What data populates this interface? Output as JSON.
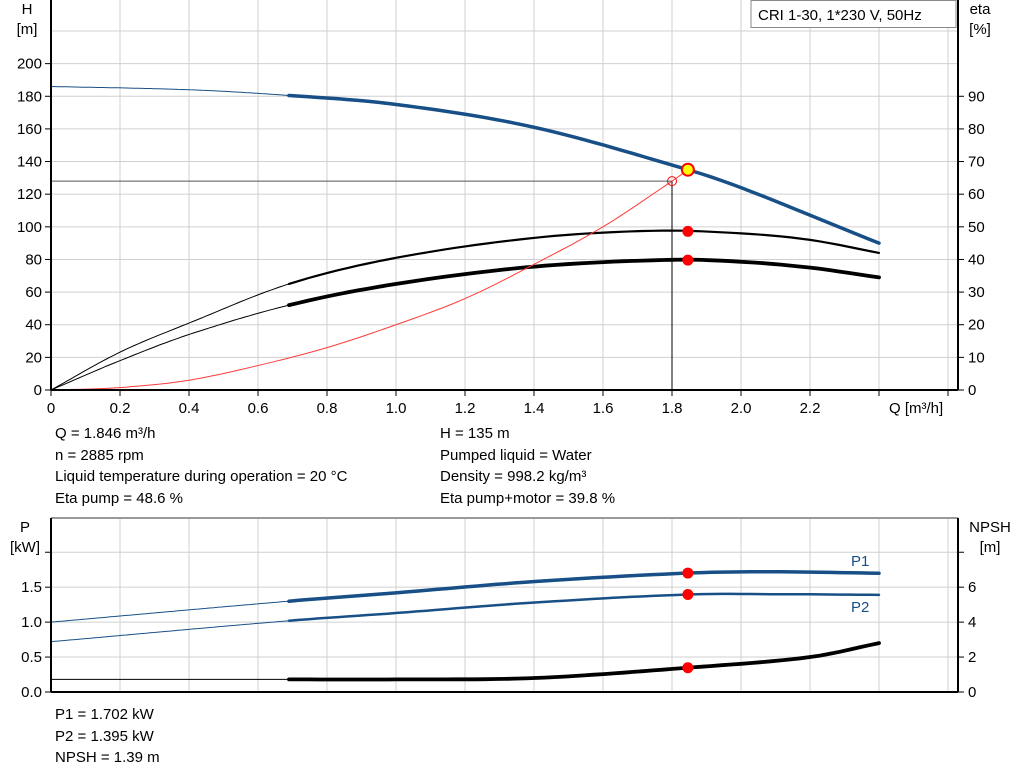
{
  "chart_data": [
    {
      "type": "line",
      "title": "CRI 1-30, 1*230 V, 50Hz",
      "xlabel": "Q [m³/h]",
      "ylabel_left": {
        "name": "H",
        "unit": "[m]"
      },
      "ylabel_right": {
        "name": "eta",
        "unit": "[%]"
      },
      "xlim": [
        0,
        2.6
      ],
      "ylim_left": [
        0,
        239
      ],
      "ylim_right": [
        0,
        119.5
      ],
      "grid": true,
      "x_ticks": [
        "0",
        "0.2",
        "0.4",
        "0.6",
        "0.8",
        "1.0",
        "1.2",
        "1.4",
        "1.6",
        "1.8",
        "2.0",
        "2.2"
      ],
      "y_ticks_left": [
        "0",
        "20",
        "40",
        "60",
        "80",
        "100",
        "120",
        "140",
        "160",
        "180",
        "200"
      ],
      "y_ticks_right": [
        "0",
        "10",
        "20",
        "30",
        "40",
        "50",
        "60",
        "70",
        "80",
        "90"
      ],
      "series": [
        {
          "axis": "left",
          "color": "#174f86",
          "curve": "H",
          "points": [
            [
              0,
              186
            ],
            [
              0.4,
              184
            ],
            [
              0.69,
              180.5
            ],
            [
              1.0,
              175
            ],
            [
              1.4,
              161
            ],
            [
              1.846,
              135
            ],
            [
              2.0,
              124
            ],
            [
              2.4,
              90
            ]
          ]
        },
        {
          "axis": "right",
          "color": "#000000",
          "curve": "eta pump",
          "points": [
            [
              0,
              0
            ],
            [
              0.2,
              11.6
            ],
            [
              0.4,
              20.5
            ],
            [
              0.69,
              32.5
            ],
            [
              1.0,
              40.5
            ],
            [
              1.4,
              46.6
            ],
            [
              1.75,
              48.8
            ],
            [
              2.0,
              48
            ],
            [
              2.2,
              46
            ],
            [
              2.4,
              42
            ]
          ]
        },
        {
          "axis": "right",
          "color": "#000000",
          "curve": "eta pump+motor",
          "points": [
            [
              0,
              0
            ],
            [
              0.2,
              9
            ],
            [
              0.4,
              17
            ],
            [
              0.69,
              26
            ],
            [
              1.0,
              32.5
            ],
            [
              1.4,
              37.8
            ],
            [
              1.8,
              39.9
            ],
            [
              2.0,
              39.3
            ],
            [
              2.2,
              37.5
            ],
            [
              2.4,
              34.5
            ]
          ]
        },
        {
          "axis": "left",
          "color": "#ff3b3b",
          "curve": "system",
          "points": [
            [
              0,
              0
            ],
            [
              0.2,
              1.5
            ],
            [
              0.4,
              6
            ],
            [
              0.6,
              15
            ],
            [
              0.8,
              26
            ],
            [
              1.0,
              40
            ],
            [
              1.2,
              56
            ],
            [
              1.4,
              77
            ],
            [
              1.6,
              100
            ],
            [
              1.8,
              128
            ],
            [
              1.846,
              135
            ]
          ]
        }
      ],
      "duty_point": {
        "q": 1.846,
        "h": 135,
        "eta_pump": 48.6,
        "eta_pump_motor": 39.8
      },
      "requested_point": {
        "q": 1.8,
        "h": 128
      }
    },
    {
      "type": "line",
      "xlim": [
        0,
        2.6
      ],
      "ylabel_left": {
        "name": "P",
        "unit": "[kW]"
      },
      "ylabel_right": {
        "name": "NPSH",
        "unit": "[m]"
      },
      "ylim_left": [
        0,
        2.49
      ],
      "ylim_right": [
        0,
        9.96
      ],
      "grid": true,
      "y_ticks_left": [
        "0.0",
        "0.5",
        "1.0",
        "1.5"
      ],
      "y_ticks_right": [
        "0",
        "2",
        "4",
        "6"
      ],
      "series": [
        {
          "name": "P1",
          "axis": "left",
          "color": "#174f86",
          "points": [
            [
              0,
              1.0
            ],
            [
              0.69,
              1.3
            ],
            [
              1.0,
              1.42
            ],
            [
              1.4,
              1.58
            ],
            [
              1.846,
              1.702
            ],
            [
              2.1,
              1.72
            ],
            [
              2.4,
              1.7
            ]
          ]
        },
        {
          "name": "P2",
          "axis": "left",
          "color": "#174f86",
          "points": [
            [
              0,
              0.72
            ],
            [
              0.69,
              1.02
            ],
            [
              1.0,
              1.13
            ],
            [
              1.4,
              1.28
            ],
            [
              1.846,
              1.395
            ],
            [
              2.1,
              1.4
            ],
            [
              2.4,
              1.39
            ]
          ]
        },
        {
          "axis": "right",
          "color": "#000000",
          "curve": "NPSH",
          "points": [
            [
              0,
              0.72
            ],
            [
              0.69,
              0.72
            ],
            [
              1.0,
              0.72
            ],
            [
              1.4,
              0.8
            ],
            [
              1.846,
              1.39
            ],
            [
              2.2,
              2.0
            ],
            [
              2.4,
              2.8
            ]
          ]
        }
      ],
      "duty_point": {
        "q": 1.846,
        "p1": 1.702,
        "p2": 1.395,
        "npsh": 1.39
      }
    }
  ],
  "info_top": {
    "left": [
      "Q = 1.846 m³/h",
      "n = 2885 rpm",
      "Liquid temperature during operation = 20 °C",
      "Eta pump = 48.6 %"
    ],
    "right": [
      "H = 135 m",
      "Pumped liquid = Water",
      "Density = 998.2 kg/m³",
      "Eta pump+motor = 39.8 %"
    ]
  },
  "info_bottom": [
    "P1 = 1.702 kW",
    "P2 = 1.395 kW",
    "NPSH = 1.39 m"
  ],
  "colors": {
    "pump_blue": "#174f86",
    "duty_red": "#ff0000",
    "duty_yellow": "#ffff00",
    "system_red": "#ff3b3b",
    "grid": "#d0d0d0"
  }
}
